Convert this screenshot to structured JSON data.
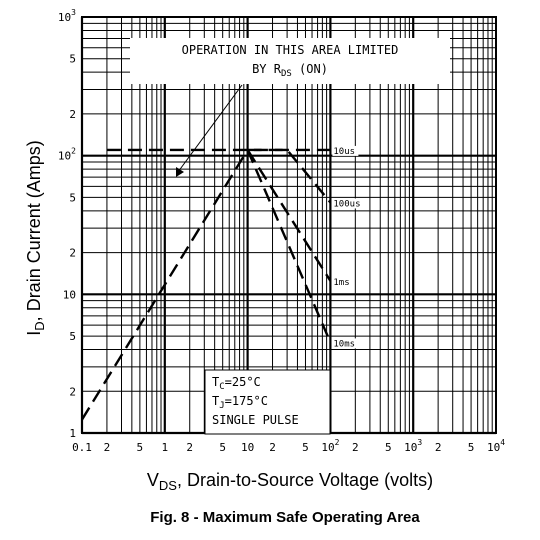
{
  "chart_data": {
    "type": "line",
    "title": "",
    "caption": "Fig. 8 - Maximum Safe Operating Area",
    "xlabel": {
      "main": "V",
      "sub": "DS",
      "rest": ", Drain-to-Source Voltage (volts)"
    },
    "ylabel": {
      "main": "I",
      "sub": "D",
      "rest": ", Drain Current (Amps)"
    },
    "x_scale": "log",
    "y_scale": "log",
    "xlim": [
      0.1,
      10000
    ],
    "ylim": [
      1,
      1000
    ],
    "grid": true,
    "x_ticks": [
      {
        "value": 0.1,
        "base": "0.1",
        "exp": ""
      },
      {
        "value": 0.2,
        "base": "2",
        "exp": ""
      },
      {
        "value": 0.5,
        "base": "5",
        "exp": ""
      },
      {
        "value": 1,
        "base": "1",
        "exp": ""
      },
      {
        "value": 2,
        "base": "2",
        "exp": ""
      },
      {
        "value": 5,
        "base": "5",
        "exp": ""
      },
      {
        "value": 10,
        "base": "10",
        "exp": ""
      },
      {
        "value": 20,
        "base": "2",
        "exp": ""
      },
      {
        "value": 50,
        "base": "5",
        "exp": ""
      },
      {
        "value": 100,
        "base": "10",
        "exp": "2"
      },
      {
        "value": 200,
        "base": "2",
        "exp": ""
      },
      {
        "value": 500,
        "base": "5",
        "exp": ""
      },
      {
        "value": 1000,
        "base": "10",
        "exp": "3"
      },
      {
        "value": 2000,
        "base": "2",
        "exp": ""
      },
      {
        "value": 5000,
        "base": "5",
        "exp": ""
      },
      {
        "value": 10000,
        "base": "10",
        "exp": "4"
      }
    ],
    "y_ticks": [
      {
        "value": 1,
        "base": "1",
        "exp": ""
      },
      {
        "value": 2,
        "base": "2",
        "exp": ""
      },
      {
        "value": 5,
        "base": "5",
        "exp": ""
      },
      {
        "value": 10,
        "base": "10",
        "exp": ""
      },
      {
        "value": 20,
        "base": "2",
        "exp": ""
      },
      {
        "value": 50,
        "base": "5",
        "exp": ""
      },
      {
        "value": 100,
        "base": "10",
        "exp": "2"
      },
      {
        "value": 200,
        "base": "2",
        "exp": ""
      },
      {
        "value": 500,
        "base": "5",
        "exp": ""
      },
      {
        "value": 1000,
        "base": "10",
        "exp": "3"
      }
    ],
    "series": [
      {
        "name": "10us",
        "style": "dashed",
        "label_at": [
          100,
          110
        ],
        "points": [
          [
            0.2,
            110
          ],
          [
            100,
            110
          ]
        ]
      },
      {
        "name": "100us",
        "style": "dashed",
        "label_at": [
          100,
          46
        ],
        "points": [
          [
            10,
            110
          ],
          [
            30,
            110
          ],
          [
            100,
            46
          ]
        ]
      },
      {
        "name": "1ms",
        "style": "dashed",
        "label_at": [
          100,
          12.5
        ],
        "points": [
          [
            10,
            110
          ],
          [
            100,
            12.5
          ]
        ]
      },
      {
        "name": "10ms",
        "style": "dashed",
        "label_at": [
          100,
          4.5
        ],
        "points": [
          [
            10,
            110
          ],
          [
            100,
            4.5
          ]
        ]
      }
    ],
    "rds_limit_line": {
      "style": "dashed",
      "points": [
        [
          0.1,
          1.25
        ],
        [
          10,
          110
        ]
      ]
    },
    "annotations": {
      "rds_note": {
        "line1": "OPERATION IN THIS AREA LIMITED",
        "line2_prefix": "BY R",
        "line2_sub": "DS",
        "line2_suffix": " (ON)"
      },
      "conditions": [
        {
          "prefix": "T",
          "sub": "C",
          "rest": "=25°C"
        },
        {
          "prefix": "T",
          "sub": "J",
          "rest": "=175°C"
        },
        {
          "prefix": "SINGLE PULSE",
          "sub": "",
          "rest": ""
        }
      ]
    }
  }
}
